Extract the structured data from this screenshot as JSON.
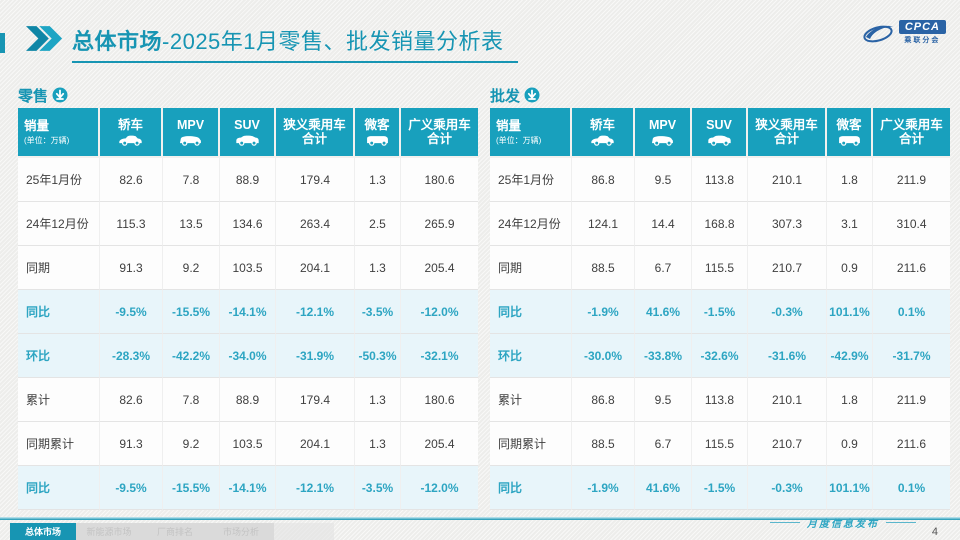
{
  "title": {
    "section": "总体市场",
    "rest": "-2025年1月零售、批发销量分析表"
  },
  "logo": {
    "text": "CPCA",
    "subtext": "乘联分会"
  },
  "tables": [
    {
      "label": "零售",
      "unit_header": {
        "title": "销量",
        "unit": "(单位：万辆)"
      },
      "columns": [
        {
          "label": "轿车",
          "icon": "sedan-icon"
        },
        {
          "label": "MPV",
          "icon": "mpv-icon"
        },
        {
          "label": "SUV",
          "icon": "suv-icon"
        },
        {
          "label": "狭义乘用车\n合计",
          "icon": null
        },
        {
          "label": "微客",
          "icon": "minibus-icon"
        },
        {
          "label": "广义乘用车\n合计",
          "icon": null
        }
      ],
      "rows": [
        {
          "label": "25年1月份",
          "type": "value",
          "values": [
            "82.6",
            "7.8",
            "88.9",
            "179.4",
            "1.3",
            "180.6"
          ]
        },
        {
          "label": "24年12月份",
          "type": "value",
          "values": [
            "115.3",
            "13.5",
            "134.6",
            "263.4",
            "2.5",
            "265.9"
          ]
        },
        {
          "label": "同期",
          "type": "value",
          "values": [
            "91.3",
            "9.2",
            "103.5",
            "204.1",
            "1.3",
            "205.4"
          ]
        },
        {
          "label": "同比",
          "type": "percent",
          "values": [
            "-9.5%",
            "-15.5%",
            "-14.1%",
            "-12.1%",
            "-3.5%",
            "-12.0%"
          ]
        },
        {
          "label": "环比",
          "type": "percent",
          "values": [
            "-28.3%",
            "-42.2%",
            "-34.0%",
            "-31.9%",
            "-50.3%",
            "-32.1%"
          ]
        },
        {
          "label": "累计",
          "type": "value",
          "values": [
            "82.6",
            "7.8",
            "88.9",
            "179.4",
            "1.3",
            "180.6"
          ]
        },
        {
          "label": "同期累计",
          "type": "value",
          "values": [
            "91.3",
            "9.2",
            "103.5",
            "204.1",
            "1.3",
            "205.4"
          ]
        },
        {
          "label": "同比",
          "type": "percent",
          "values": [
            "-9.5%",
            "-15.5%",
            "-14.1%",
            "-12.1%",
            "-3.5%",
            "-12.0%"
          ]
        }
      ]
    },
    {
      "label": "批发",
      "unit_header": {
        "title": "销量",
        "unit": "(单位：万辆)"
      },
      "columns": [
        {
          "label": "轿车",
          "icon": "sedan-icon"
        },
        {
          "label": "MPV",
          "icon": "mpv-icon"
        },
        {
          "label": "SUV",
          "icon": "suv-icon"
        },
        {
          "label": "狭义乘用车\n合计",
          "icon": null
        },
        {
          "label": "微客",
          "icon": "minibus-icon"
        },
        {
          "label": "广义乘用车\n合计",
          "icon": null
        }
      ],
      "rows": [
        {
          "label": "25年1月份",
          "type": "value",
          "values": [
            "86.8",
            "9.5",
            "113.8",
            "210.1",
            "1.8",
            "211.9"
          ]
        },
        {
          "label": "24年12月份",
          "type": "value",
          "values": [
            "124.1",
            "14.4",
            "168.8",
            "307.3",
            "3.1",
            "310.4"
          ]
        },
        {
          "label": "同期",
          "type": "value",
          "values": [
            "88.5",
            "6.7",
            "115.5",
            "210.7",
            "0.9",
            "211.6"
          ]
        },
        {
          "label": "同比",
          "type": "percent",
          "values": [
            "-1.9%",
            "41.6%",
            "-1.5%",
            "-0.3%",
            "101.1%",
            "0.1%"
          ]
        },
        {
          "label": "环比",
          "type": "percent",
          "values": [
            "-30.0%",
            "-33.8%",
            "-32.6%",
            "-31.6%",
            "-42.9%",
            "-31.7%"
          ]
        },
        {
          "label": "累计",
          "type": "value",
          "values": [
            "86.8",
            "9.5",
            "113.8",
            "210.1",
            "1.8",
            "211.9"
          ]
        },
        {
          "label": "同期累计",
          "type": "value",
          "values": [
            "88.5",
            "6.7",
            "115.5",
            "210.7",
            "0.9",
            "211.6"
          ]
        },
        {
          "label": "同比",
          "type": "percent",
          "values": [
            "-1.9%",
            "41.6%",
            "-1.5%",
            "-0.3%",
            "101.1%",
            "0.1%"
          ]
        }
      ]
    }
  ],
  "footer": {
    "tabs": [
      {
        "label": "总体市场",
        "active": true
      },
      {
        "label": "新能源市场",
        "active": false
      },
      {
        "label": "厂商排名",
        "active": false
      },
      {
        "label": "市场分析",
        "active": false
      }
    ],
    "note": "月度信息发布",
    "page": "4"
  },
  "colors": {
    "accent_teal": "#1795b3",
    "header_teal": "#18a0bd",
    "percent_text": "#2da5c2",
    "percent_row_bg": "#e8f5fa",
    "logo_blue": "#2a63a5"
  }
}
